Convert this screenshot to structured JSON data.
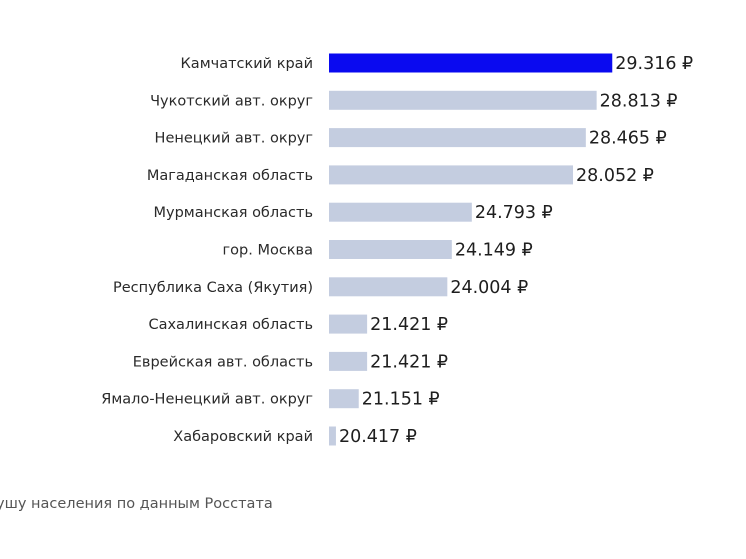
{
  "chart_data": {
    "type": "bar",
    "orientation": "horizontal",
    "categories": [
      "Камчатский край",
      "Чукотский авт. округ",
      "Ненецкий авт. округ",
      "Магаданская область",
      "Мурманская область",
      "гор. Москва",
      "Республика Саха (Якутия)",
      "Сахалинская область",
      "Еврейская авт. область",
      "Ямало-Ненецкий авт. округ",
      "Хабаровский край"
    ],
    "values": [
      29.316,
      28.813,
      28.465,
      28.052,
      24.793,
      24.149,
      24.004,
      21.421,
      21.421,
      21.151,
      20.417
    ],
    "value_labels": [
      "29.316 ₽",
      "28.813 ₽",
      "28.465 ₽",
      "28.052 ₽",
      "24.793 ₽",
      "24.149 ₽",
      "24.004 ₽",
      "21.421 ₽",
      "21.421 ₽",
      "21.151 ₽",
      "20.417 ₽"
    ],
    "highlight_index": 0,
    "colors": {
      "highlight": "#0a0af0",
      "bar": "#c4cde0"
    },
    "grid": false,
    "legend": "none"
  },
  "footnote": "ушу населения по данным Росстата"
}
